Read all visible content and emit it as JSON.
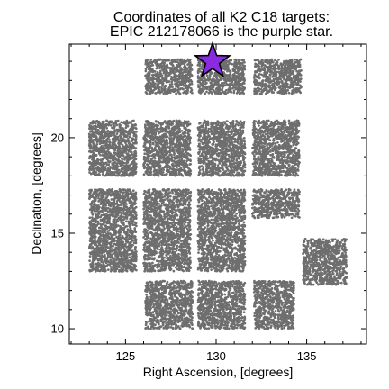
{
  "chart_data": {
    "type": "scatter",
    "title_lines": [
      "Coordinates of all K2 C18 targets:",
      "EPIC 212178066 is the purple star."
    ],
    "xlabel": "Right Ascension, [degrees]",
    "ylabel": "Declination, [degrees]",
    "xlim": [
      121.9,
      138.3
    ],
    "ylim": [
      9.2,
      24.9
    ],
    "xticks": [
      125,
      130,
      135
    ],
    "yticks": [
      10,
      15,
      20
    ],
    "grid": false,
    "legend": "none",
    "colors": {
      "targets": "#6e6e6e",
      "highlight_fill": "#8a2be2",
      "highlight_edge": "#000000",
      "axes": "#000000"
    },
    "series": [
      {
        "marker": "dot",
        "color": "#6e6e6e",
        "fields": [
          {
            "ra": [
              126.1,
              128.7
            ],
            "dec": [
              22.3,
              24.1
            ]
          },
          {
            "ra": [
              129.0,
              131.6
            ],
            "dec": [
              22.3,
              24.1
            ]
          },
          {
            "ra": [
              132.1,
              134.7
            ],
            "dec": [
              22.3,
              24.1
            ]
          },
          {
            "ra": [
              123.0,
              125.6
            ],
            "dec": [
              18.0,
              20.9
            ]
          },
          {
            "ra": [
              126.0,
              128.6
            ],
            "dec": [
              18.0,
              20.9
            ]
          },
          {
            "ra": [
              129.0,
              131.6
            ],
            "dec": [
              18.0,
              20.9
            ]
          },
          {
            "ra": [
              132.0,
              134.6
            ],
            "dec": [
              18.0,
              20.9
            ]
          },
          {
            "ra": [
              123.0,
              125.6
            ],
            "dec": [
              13.0,
              17.3
            ]
          },
          {
            "ra": [
              126.0,
              128.6
            ],
            "dec": [
              13.0,
              17.3
            ]
          },
          {
            "ra": [
              129.0,
              131.6
            ],
            "dec": [
              13.0,
              17.3
            ]
          },
          {
            "ra": [
              132.0,
              134.6
            ],
            "dec": [
              15.8,
              17.3
            ]
          },
          {
            "ra": [
              134.8,
              137.2
            ],
            "dec": [
              12.3,
              14.7
            ]
          },
          {
            "ra": [
              126.1,
              128.7
            ],
            "dec": [
              10.0,
              12.5
            ]
          },
          {
            "ra": [
              129.0,
              131.6
            ],
            "dec": [
              10.0,
              12.5
            ]
          },
          {
            "ra": [
              132.1,
              134.3
            ],
            "dec": [
              10.0,
              12.5
            ]
          }
        ]
      },
      {
        "marker": "star",
        "color": "#8a2be2",
        "x": [
          129.8
        ],
        "y": [
          24.0
        ]
      }
    ]
  }
}
